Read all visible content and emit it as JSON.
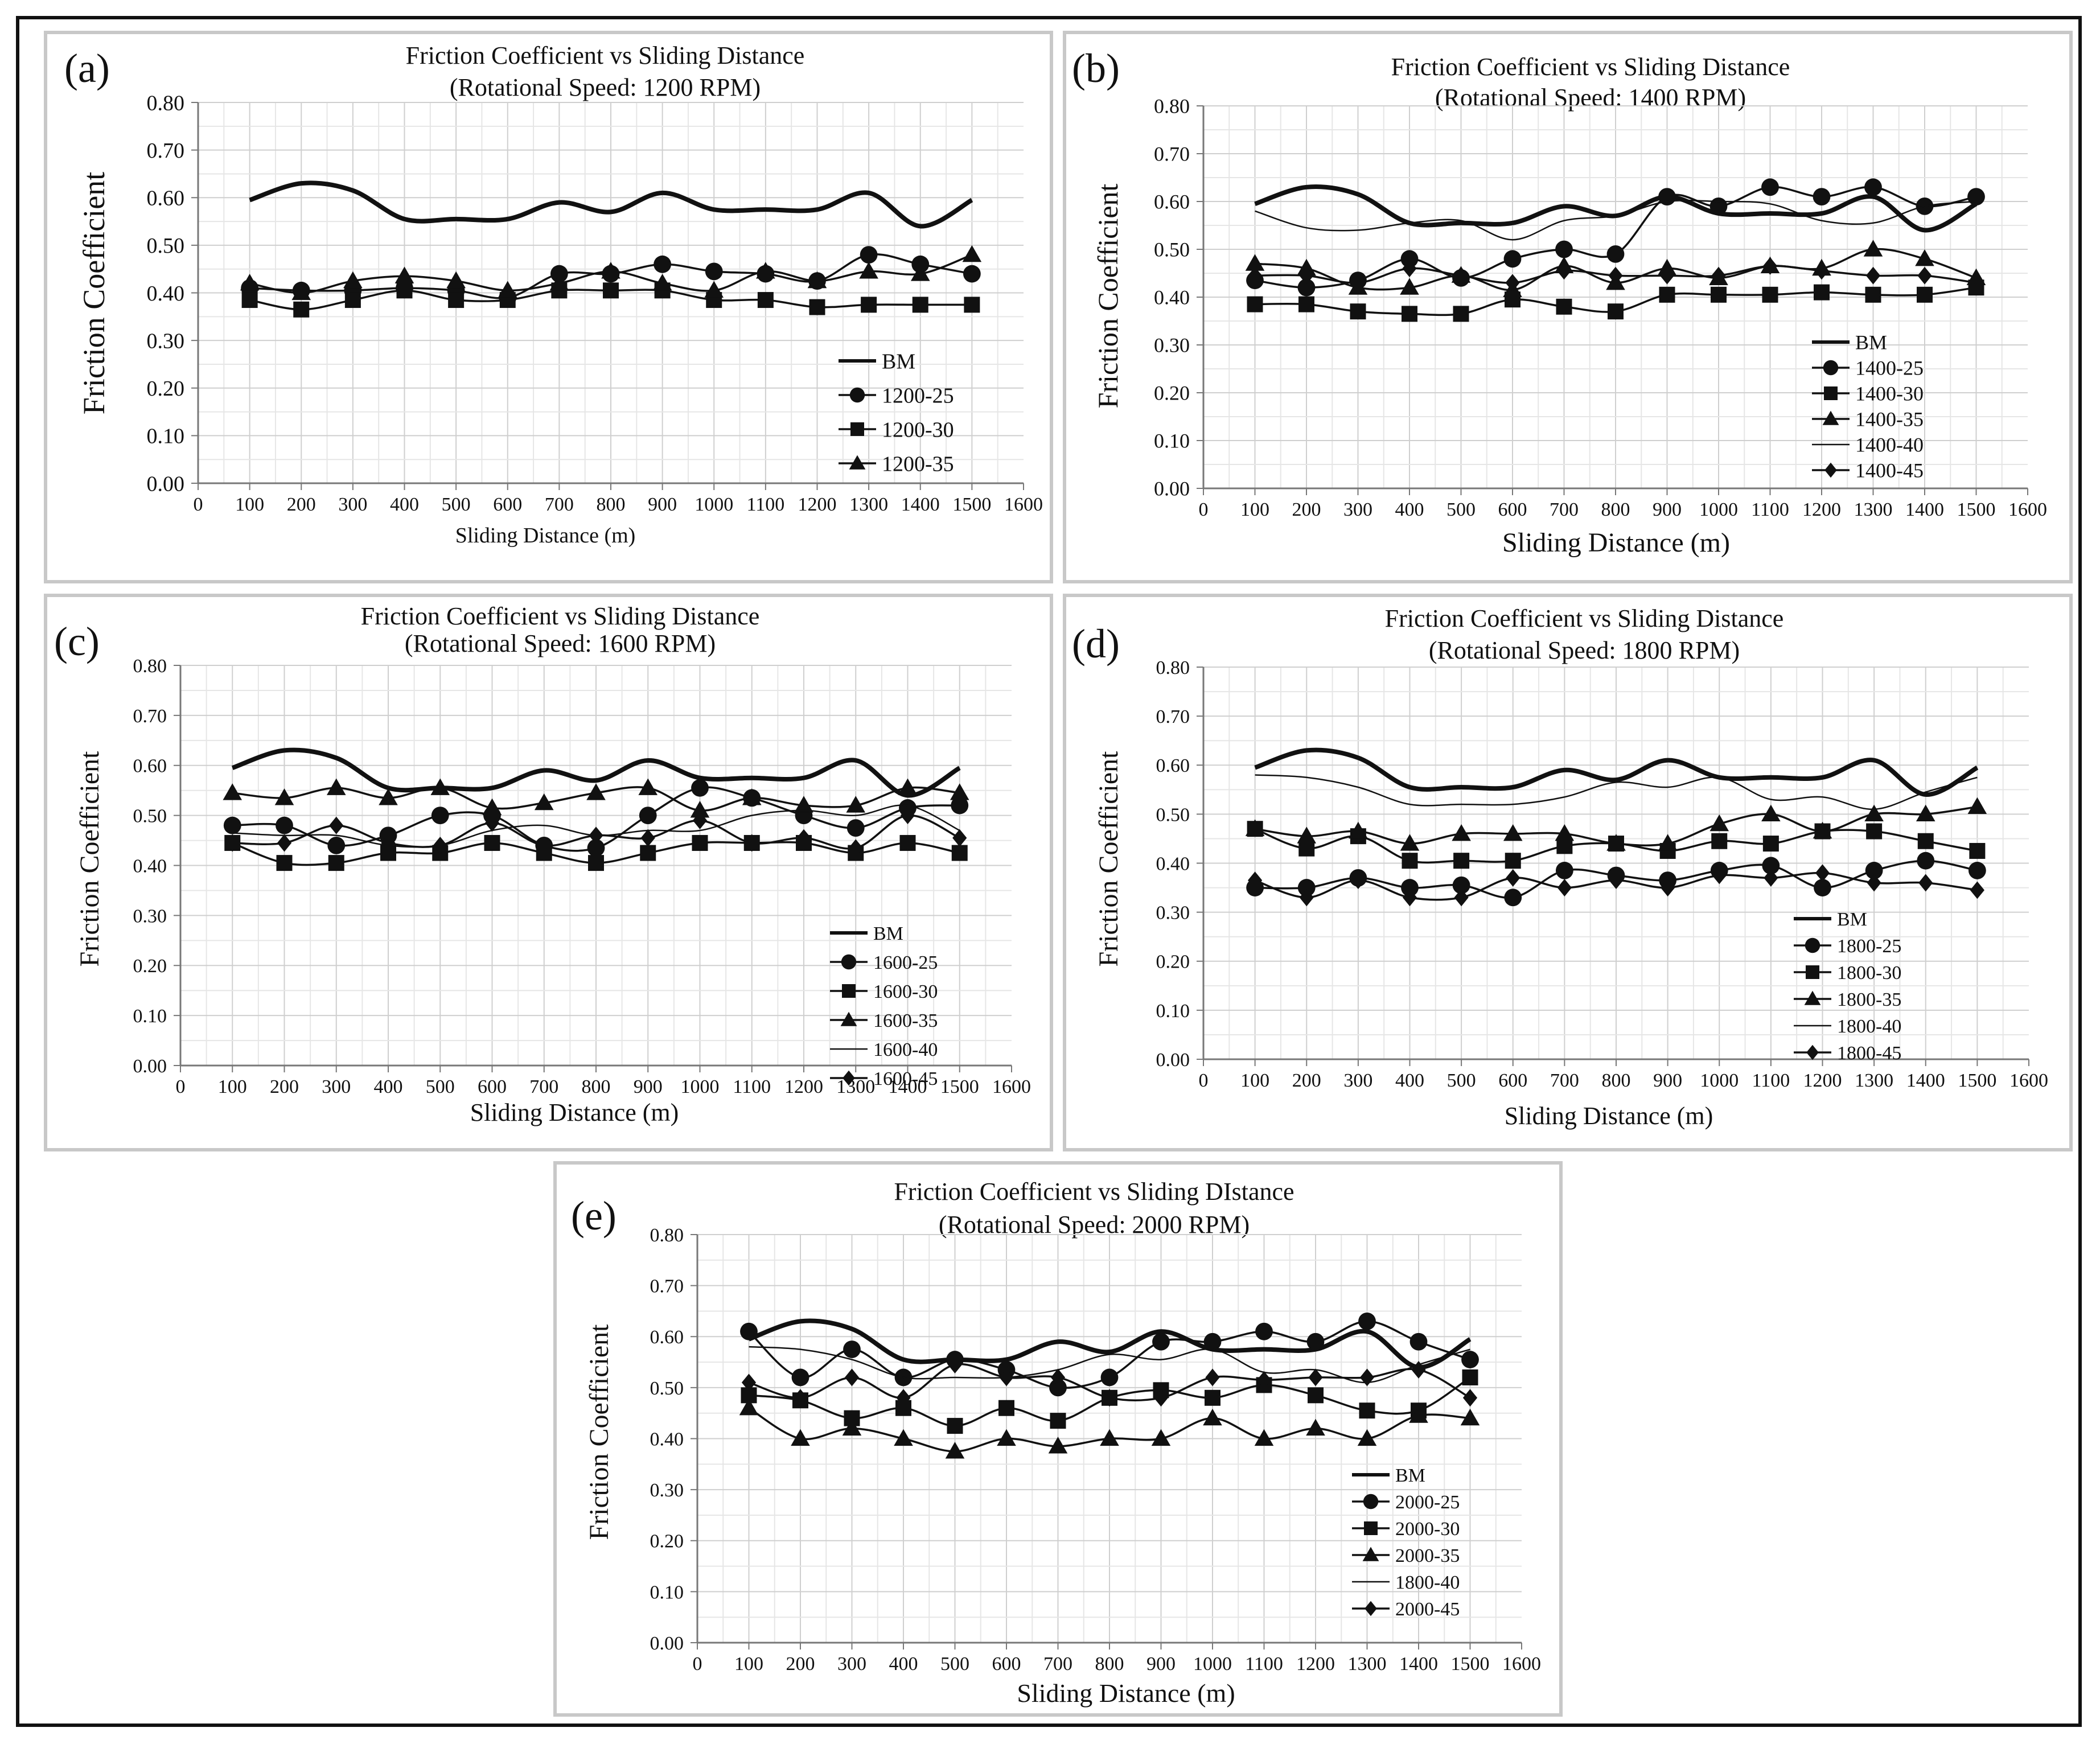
{
  "chart_data": [
    {
      "type": "line",
      "panel_label": "(a)",
      "title": "Friction Coefficient vs Sliding Distance",
      "subtitle": "(Rotational Speed: 1200 RPM)",
      "xlabel": "Sliding Distance (m)",
      "ylabel": "Friction Coefficient",
      "xlim": [
        0,
        1600
      ],
      "ylim": [
        0,
        0.8
      ],
      "x_ticks": [
        "0",
        "100",
        "200",
        "300",
        "400",
        "500",
        "600",
        "700",
        "800",
        "900",
        "1000",
        "1100",
        "1200",
        "1300",
        "1400",
        "1500",
        "1600"
      ],
      "y_ticks": [
        "0.00",
        "0.10",
        "0.20",
        "0.30",
        "0.40",
        "0.50",
        "0.60",
        "0.70",
        "0.80"
      ],
      "grid": true,
      "legend_position": "lower-right",
      "x": [
        100,
        200,
        300,
        400,
        500,
        600,
        700,
        800,
        900,
        1000,
        1100,
        1200,
        1300,
        1400,
        1500
      ],
      "series": [
        {
          "name": "BM",
          "marker": "none",
          "style": "bold",
          "values": [
            0.595,
            0.63,
            0.615,
            0.555,
            0.555,
            0.555,
            0.59,
            0.57,
            0.61,
            0.575,
            0.575,
            0.575,
            0.61,
            0.54,
            0.595
          ]
        },
        {
          "name": "1200-25",
          "marker": "circle",
          "style": "normal",
          "values": [
            0.41,
            0.405,
            0.405,
            0.41,
            0.405,
            0.39,
            0.44,
            0.44,
            0.46,
            0.445,
            0.44,
            0.425,
            0.48,
            0.46,
            0.44
          ]
        },
        {
          "name": "1200-30",
          "marker": "square",
          "style": "normal",
          "values": [
            0.385,
            0.365,
            0.385,
            0.405,
            0.385,
            0.385,
            0.405,
            0.405,
            0.405,
            0.385,
            0.385,
            0.37,
            0.375,
            0.375,
            0.375
          ]
        },
        {
          "name": "1200-35",
          "marker": "triangle",
          "style": "normal",
          "values": [
            0.42,
            0.4,
            0.425,
            0.435,
            0.425,
            0.405,
            0.42,
            0.445,
            0.42,
            0.405,
            0.445,
            0.425,
            0.445,
            0.44,
            0.48
          ]
        }
      ]
    },
    {
      "type": "line",
      "panel_label": "(b)",
      "title": "Friction Coefficient vs Sliding Distance",
      "subtitle": "(Rotational Speed: 1400 RPM)",
      "xlabel": "Sliding Distance (m)",
      "ylabel": "Friction Coefficient",
      "xlim": [
        0,
        1600
      ],
      "ylim": [
        0,
        0.8
      ],
      "x_ticks": [
        "0",
        "100",
        "200",
        "300",
        "400",
        "500",
        "600",
        "700",
        "800",
        "900",
        "1000",
        "1100",
        "1200",
        "1300",
        "1400",
        "1500",
        "1600"
      ],
      "y_ticks": [
        "0.00",
        "0.10",
        "0.20",
        "0.30",
        "0.40",
        "0.50",
        "0.60",
        "0.70",
        "0.80"
      ],
      "grid": true,
      "legend_position": "lower-right",
      "x": [
        100,
        200,
        300,
        400,
        500,
        600,
        700,
        800,
        900,
        1000,
        1100,
        1200,
        1300,
        1400,
        1500
      ],
      "series": [
        {
          "name": "BM",
          "marker": "none",
          "style": "bold",
          "values": [
            0.595,
            0.63,
            0.615,
            0.555,
            0.555,
            0.555,
            0.59,
            0.57,
            0.61,
            0.575,
            0.575,
            0.575,
            0.61,
            0.54,
            0.595
          ]
        },
        {
          "name": "1400-25",
          "marker": "circle",
          "style": "normal",
          "values": [
            0.435,
            0.42,
            0.435,
            0.48,
            0.44,
            0.48,
            0.5,
            0.49,
            0.61,
            0.59,
            0.63,
            0.61,
            0.63,
            0.59,
            0.61
          ]
        },
        {
          "name": "1400-30",
          "marker": "square",
          "style": "normal",
          "values": [
            0.385,
            0.385,
            0.37,
            0.365,
            0.365,
            0.395,
            0.38,
            0.37,
            0.405,
            0.405,
            0.405,
            0.41,
            0.405,
            0.405,
            0.42
          ]
        },
        {
          "name": "1400-35",
          "marker": "triangle",
          "style": "normal",
          "values": [
            0.47,
            0.46,
            0.42,
            0.42,
            0.445,
            0.415,
            0.465,
            0.43,
            0.46,
            0.44,
            0.465,
            0.46,
            0.5,
            0.48,
            0.44
          ]
        },
        {
          "name": "1400-40",
          "marker": "none",
          "style": "thin",
          "values": [
            0.58,
            0.545,
            0.54,
            0.555,
            0.56,
            0.52,
            0.56,
            0.57,
            0.6,
            0.6,
            0.595,
            0.56,
            0.555,
            0.59,
            0.6
          ]
        },
        {
          "name": "1400-45",
          "marker": "diamond",
          "style": "normal",
          "values": [
            0.445,
            0.445,
            0.43,
            0.46,
            0.445,
            0.43,
            0.455,
            0.445,
            0.445,
            0.445,
            0.465,
            0.455,
            0.445,
            0.445,
            0.43
          ]
        }
      ]
    },
    {
      "type": "line",
      "panel_label": "(c)",
      "title": "Friction Coefficient vs Sliding Distance",
      "subtitle": "(Rotational Speed: 1600 RPM)",
      "xlabel": "Sliding Distance (m)",
      "ylabel": "Friction Coefficient",
      "xlim": [
        0,
        1600
      ],
      "ylim": [
        0,
        0.8
      ],
      "x_ticks": [
        "0",
        "100",
        "200",
        "300",
        "400",
        "500",
        "600",
        "700",
        "800",
        "900",
        "1000",
        "1100",
        "1200",
        "1300",
        "1400",
        "1500",
        "1600"
      ],
      "y_ticks": [
        "0.00",
        "0.10",
        "0.20",
        "0.30",
        "0.40",
        "0.50",
        "0.60",
        "0.70",
        "0.80"
      ],
      "grid": true,
      "legend_position": "lower-right",
      "x": [
        100,
        200,
        300,
        400,
        500,
        600,
        700,
        800,
        900,
        1000,
        1100,
        1200,
        1300,
        1400,
        1500
      ],
      "series": [
        {
          "name": "BM",
          "marker": "none",
          "style": "bold",
          "values": [
            0.595,
            0.63,
            0.615,
            0.555,
            0.555,
            0.555,
            0.59,
            0.57,
            0.61,
            0.575,
            0.575,
            0.575,
            0.61,
            0.54,
            0.595
          ]
        },
        {
          "name": "1600-25",
          "marker": "circle",
          "style": "normal",
          "values": [
            0.48,
            0.48,
            0.44,
            0.46,
            0.5,
            0.5,
            0.44,
            0.435,
            0.5,
            0.555,
            0.535,
            0.5,
            0.475,
            0.515,
            0.52
          ]
        },
        {
          "name": "1600-30",
          "marker": "square",
          "style": "normal",
          "values": [
            0.445,
            0.405,
            0.405,
            0.425,
            0.425,
            0.445,
            0.425,
            0.405,
            0.425,
            0.445,
            0.445,
            0.445,
            0.425,
            0.445,
            0.425
          ]
        },
        {
          "name": "1600-35",
          "marker": "triangle",
          "style": "normal",
          "values": [
            0.545,
            0.535,
            0.555,
            0.535,
            0.555,
            0.515,
            0.525,
            0.545,
            0.555,
            0.51,
            0.535,
            0.52,
            0.52,
            0.555,
            0.545
          ]
        },
        {
          "name": "1600-40",
          "marker": "none",
          "style": "thin",
          "values": [
            0.465,
            0.46,
            0.46,
            0.44,
            0.44,
            0.47,
            0.48,
            0.46,
            0.47,
            0.47,
            0.5,
            0.51,
            0.5,
            0.52,
            0.47
          ]
        },
        {
          "name": "1600-45",
          "marker": "diamond",
          "style": "normal",
          "values": [
            0.445,
            0.445,
            0.48,
            0.445,
            0.44,
            0.485,
            0.44,
            0.46,
            0.455,
            0.49,
            0.445,
            0.455,
            0.435,
            0.5,
            0.455
          ]
        }
      ]
    },
    {
      "type": "line",
      "panel_label": "(d)",
      "title": "Friction Coefficient vs Sliding Distance",
      "subtitle": "(Rotational Speed: 1800 RPM)",
      "xlabel": "Sliding Distance (m)",
      "ylabel": "Friction Coefficient",
      "xlim": [
        0,
        1600
      ],
      "ylim": [
        0,
        0.8
      ],
      "x_ticks": [
        "0",
        "100",
        "200",
        "300",
        "400",
        "500",
        "600",
        "700",
        "800",
        "900",
        "1000",
        "1100",
        "1200",
        "1300",
        "1400",
        "1500",
        "1600"
      ],
      "y_ticks": [
        "0.00",
        "0.10",
        "0.20",
        "0.30",
        "0.40",
        "0.50",
        "0.60",
        "0.70",
        "0.80"
      ],
      "grid": true,
      "legend_position": "lower-right",
      "x": [
        100,
        200,
        300,
        400,
        500,
        600,
        700,
        800,
        900,
        1000,
        1100,
        1200,
        1300,
        1400,
        1500
      ],
      "series": [
        {
          "name": "BM",
          "marker": "none",
          "style": "bold",
          "values": [
            0.595,
            0.63,
            0.615,
            0.555,
            0.555,
            0.555,
            0.59,
            0.57,
            0.61,
            0.575,
            0.575,
            0.575,
            0.61,
            0.54,
            0.595
          ]
        },
        {
          "name": "1800-25",
          "marker": "circle",
          "style": "normal",
          "values": [
            0.35,
            0.35,
            0.37,
            0.35,
            0.355,
            0.33,
            0.385,
            0.375,
            0.365,
            0.385,
            0.395,
            0.35,
            0.385,
            0.405,
            0.385
          ]
        },
        {
          "name": "1800-30",
          "marker": "square",
          "style": "normal",
          "values": [
            0.47,
            0.43,
            0.455,
            0.405,
            0.405,
            0.405,
            0.435,
            0.44,
            0.425,
            0.445,
            0.44,
            0.465,
            0.465,
            0.445,
            0.425
          ]
        },
        {
          "name": "1800-35",
          "marker": "triangle",
          "style": "normal",
          "values": [
            0.47,
            0.455,
            0.465,
            0.44,
            0.46,
            0.46,
            0.46,
            0.44,
            0.44,
            0.48,
            0.5,
            0.465,
            0.5,
            0.5,
            0.515
          ]
        },
        {
          "name": "1800-40",
          "marker": "none",
          "style": "thin",
          "values": [
            0.58,
            0.575,
            0.555,
            0.52,
            0.52,
            0.52,
            0.535,
            0.565,
            0.555,
            0.575,
            0.53,
            0.535,
            0.51,
            0.545,
            0.575
          ]
        },
        {
          "name": "1800-45",
          "marker": "diamond",
          "style": "normal",
          "values": [
            0.365,
            0.33,
            0.365,
            0.33,
            0.33,
            0.37,
            0.35,
            0.365,
            0.35,
            0.375,
            0.37,
            0.38,
            0.36,
            0.36,
            0.345
          ]
        }
      ]
    },
    {
      "type": "line",
      "panel_label": "(e)",
      "title": "Friction Coefficient vs Sliding DIstance",
      "subtitle": "(Rotational Speed: 2000 RPM)",
      "xlabel": "Sliding Distance (m)",
      "ylabel": "Friction Coefficient",
      "xlim": [
        0,
        1600
      ],
      "ylim": [
        0,
        0.8
      ],
      "x_ticks": [
        "0",
        "100",
        "200",
        "300",
        "400",
        "500",
        "600",
        "700",
        "800",
        "900",
        "1000",
        "1100",
        "1200",
        "1300",
        "1400",
        "1500",
        "1600"
      ],
      "y_ticks": [
        "0.00",
        "0.10",
        "0.20",
        "0.30",
        "0.40",
        "0.50",
        "0.60",
        "0.70",
        "0.80"
      ],
      "grid": true,
      "legend_position": "lower-right",
      "x": [
        100,
        200,
        300,
        400,
        500,
        600,
        700,
        800,
        900,
        1000,
        1100,
        1200,
        1300,
        1400,
        1500
      ],
      "series": [
        {
          "name": "BM",
          "marker": "none",
          "style": "bold",
          "values": [
            0.595,
            0.63,
            0.615,
            0.555,
            0.555,
            0.555,
            0.59,
            0.57,
            0.61,
            0.575,
            0.575,
            0.575,
            0.61,
            0.54,
            0.595
          ]
        },
        {
          "name": "2000-25",
          "marker": "circle",
          "style": "normal",
          "values": [
            0.61,
            0.52,
            0.575,
            0.52,
            0.555,
            0.535,
            0.5,
            0.52,
            0.59,
            0.59,
            0.61,
            0.59,
            0.63,
            0.59,
            0.555
          ]
        },
        {
          "name": "2000-30",
          "marker": "square",
          "style": "normal",
          "values": [
            0.485,
            0.475,
            0.44,
            0.46,
            0.425,
            0.46,
            0.435,
            0.48,
            0.495,
            0.48,
            0.505,
            0.485,
            0.455,
            0.455,
            0.52
          ]
        },
        {
          "name": "2000-35",
          "marker": "triangle",
          "style": "normal",
          "values": [
            0.46,
            0.4,
            0.42,
            0.4,
            0.375,
            0.4,
            0.385,
            0.4,
            0.4,
            0.44,
            0.4,
            0.42,
            0.4,
            0.445,
            0.44
          ]
        },
        {
          "name": "1800-40",
          "marker": "none",
          "style": "thin",
          "values": [
            0.58,
            0.575,
            0.555,
            0.52,
            0.52,
            0.52,
            0.535,
            0.565,
            0.555,
            0.575,
            0.53,
            0.535,
            0.51,
            0.545,
            0.575
          ]
        },
        {
          "name": "2000-45",
          "marker": "diamond",
          "style": "normal",
          "values": [
            0.51,
            0.48,
            0.52,
            0.48,
            0.545,
            0.52,
            0.52,
            0.48,
            0.48,
            0.52,
            0.515,
            0.52,
            0.52,
            0.535,
            0.48
          ]
        }
      ]
    }
  ]
}
